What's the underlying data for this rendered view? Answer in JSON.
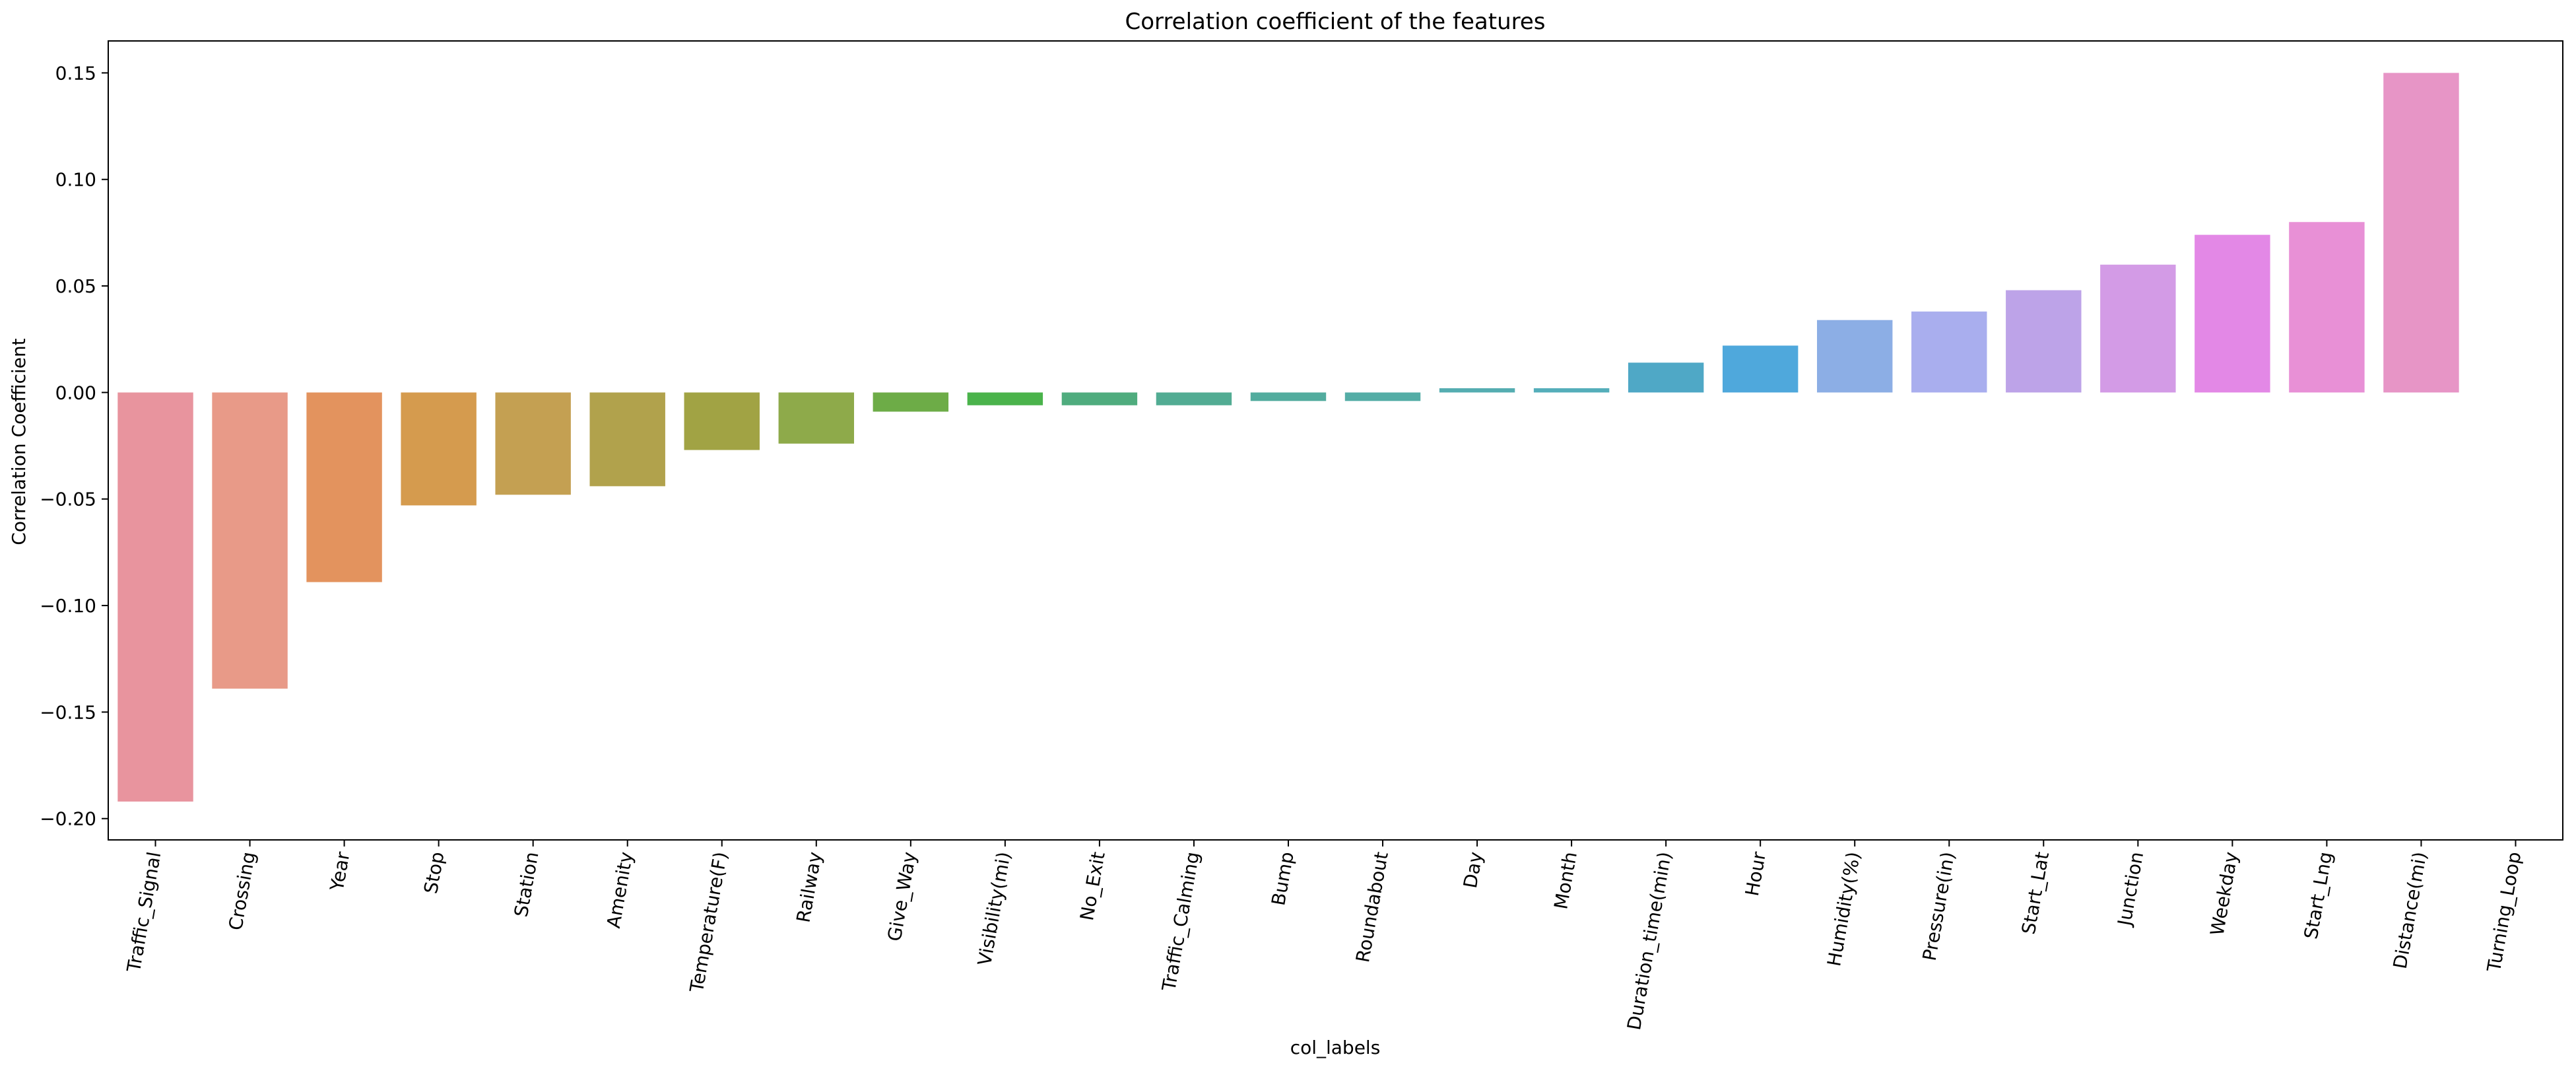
{
  "chart_data": {
    "type": "bar",
    "title": "Correlation coefficient of the features",
    "xlabel": "col_labels",
    "ylabel": "Correlation Coefficient",
    "ylim": [
      -0.21,
      0.165
    ],
    "yticks": [
      -0.2,
      -0.15,
      -0.1,
      -0.05,
      0.0,
      0.05,
      0.1,
      0.15
    ],
    "ytick_labels": [
      "−0.20",
      "−0.15",
      "−0.10",
      "−0.05",
      "0.00",
      "0.05",
      "0.10",
      "0.15"
    ],
    "grid": false,
    "legend": "none",
    "x_tick_rotation_deg": 80,
    "categories": [
      "Traffic_Signal",
      "Crossing",
      "Year",
      "Stop",
      "Station",
      "Amenity",
      "Temperature(F)",
      "Railway",
      "Give_Way",
      "Visibility(mi)",
      "No_Exit",
      "Traffic_Calming",
      "Bump",
      "Roundabout",
      "Day",
      "Month",
      "Duration_time(min)",
      "Hour",
      "Humidity(%)",
      "Pressure(in)",
      "Start_Lat",
      "Junction",
      "Weekday",
      "Start_Lng",
      "Distance(mi)",
      "Turning_Loop"
    ],
    "values": [
      -0.192,
      -0.139,
      -0.089,
      -0.053,
      -0.048,
      -0.044,
      -0.027,
      -0.024,
      -0.009,
      -0.006,
      -0.006,
      -0.006,
      -0.004,
      -0.004,
      0.002,
      0.002,
      0.014,
      0.022,
      0.034,
      0.038,
      0.048,
      0.06,
      0.074,
      0.08,
      0.15,
      0.0
    ],
    "colors": [
      "#E8949E",
      "#E89A88",
      "#E3935E",
      "#D59B4E",
      "#C4A052",
      "#B1A24C",
      "#A1A344",
      "#8EAA4A",
      "#6DAC47",
      "#4AB34B",
      "#4FAC7E",
      "#52AC93",
      "#52AC9E",
      "#54ADA6",
      "#55ADB1",
      "#55AEBA",
      "#4FA8C6",
      "#4FA8DC",
      "#8CAEE5",
      "#A9AEEE",
      "#BDA3E8",
      "#D39BE6",
      "#E388E6",
      "#E890D6",
      "#E795C6",
      "#E898B8"
    ]
  }
}
